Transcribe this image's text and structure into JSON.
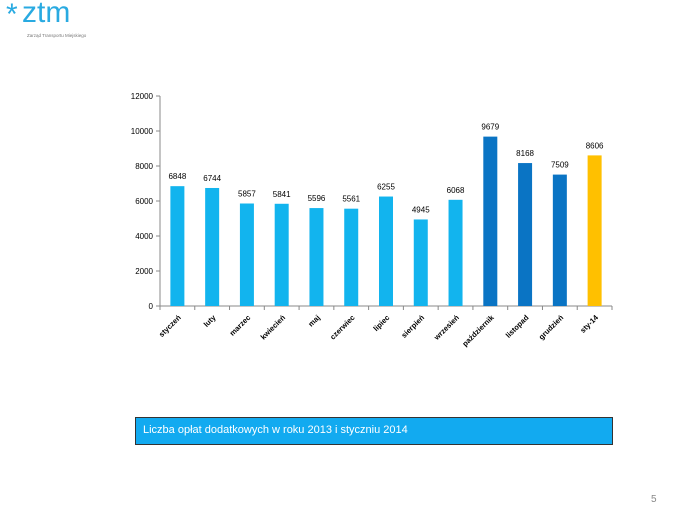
{
  "logo": {
    "mark": "*",
    "name": "ztm",
    "subtitle": "Zarząd Transportu Miejskiego"
  },
  "caption": "Liczba opłat dodatkowych w roku 2013 i styczniu 2014",
  "page_number": "5",
  "colors": {
    "light": "#12b4ee",
    "dark": "#0a74c4",
    "highlight": "#ffc000"
  },
  "chart_data": {
    "type": "bar",
    "title": "",
    "xlabel": "",
    "ylabel": "",
    "ylim": [
      0,
      12000
    ],
    "yticks": [
      0,
      2000,
      4000,
      6000,
      8000,
      10000,
      12000
    ],
    "grid": false,
    "categories": [
      "styczeń",
      "luty",
      "marzec",
      "kwiecień",
      "maj",
      "czerwiec",
      "lipiec",
      "sierpień",
      "wrzesień",
      "październik",
      "listopad",
      "grudzień",
      "sty-14"
    ],
    "values": [
      6848,
      6744,
      5857,
      5841,
      5596,
      5561,
      6255,
      4945,
      6068,
      9679,
      8168,
      7509,
      8606
    ],
    "bar_colors": [
      "light",
      "light",
      "light",
      "light",
      "light",
      "light",
      "light",
      "light",
      "light",
      "dark",
      "dark",
      "dark",
      "highlight"
    ]
  }
}
